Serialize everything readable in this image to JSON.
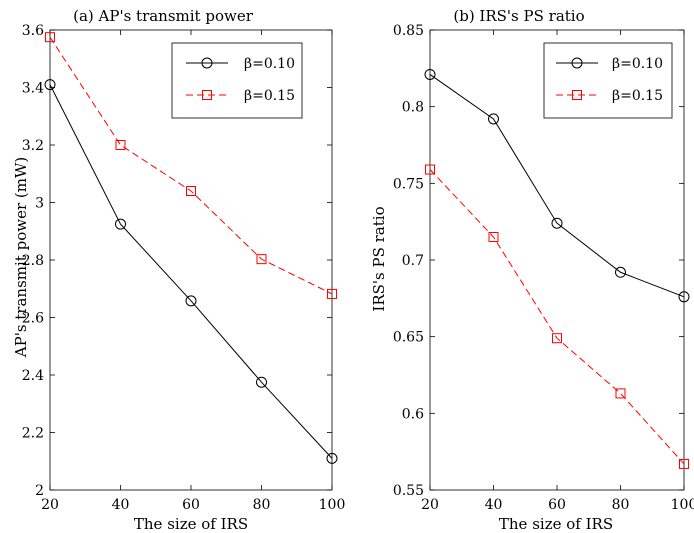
{
  "chart_data": [
    {
      "type": "line",
      "title": "(a) AP's transmit power",
      "xlabel": "The size of IRS",
      "ylabel": "AP's transmit power (mW)",
      "x": [
        20,
        40,
        60,
        80,
        100
      ],
      "xlim": [
        20,
        100
      ],
      "ylim": [
        2,
        3.6
      ],
      "xticks": [
        "20",
        "40",
        "60",
        "80",
        "100"
      ],
      "yticks": [
        "2",
        "2.2",
        "2.4",
        "2.6",
        "2.8",
        "3",
        "3.2",
        "3.4",
        "3.6"
      ],
      "legend_position": "top-right",
      "series": [
        {
          "name": "β=0.10",
          "values": [
            3.41,
            2.925,
            2.658,
            2.375,
            2.11
          ],
          "color": "#000000",
          "marker": "circle",
          "line": "solid"
        },
        {
          "name": "β=0.15",
          "values": [
            3.575,
            3.2,
            3.04,
            2.803,
            2.682
          ],
          "color": "#ff0000",
          "marker": "square",
          "line": "dashed"
        }
      ]
    },
    {
      "type": "line",
      "title": "(b) IRS's PS ratio",
      "xlabel": "The size of IRS",
      "ylabel": "IRS's PS ratio",
      "x": [
        20,
        40,
        60,
        80,
        100
      ],
      "xlim": [
        20,
        100
      ],
      "ylim": [
        0.55,
        0.85
      ],
      "xticks": [
        "20",
        "40",
        "60",
        "80",
        "100"
      ],
      "yticks": [
        "0.55",
        "0.6",
        "0.65",
        "0.7",
        "0.75",
        "0.8",
        "0.85"
      ],
      "legend_position": "top-right",
      "series": [
        {
          "name": "β=0.10",
          "values": [
            0.821,
            0.792,
            0.724,
            0.692,
            0.676
          ],
          "color": "#000000",
          "marker": "circle",
          "line": "solid"
        },
        {
          "name": "β=0.15",
          "values": [
            0.759,
            0.715,
            0.649,
            0.613,
            0.567
          ],
          "color": "#ff0000",
          "marker": "square",
          "line": "dashed"
        }
      ]
    }
  ]
}
